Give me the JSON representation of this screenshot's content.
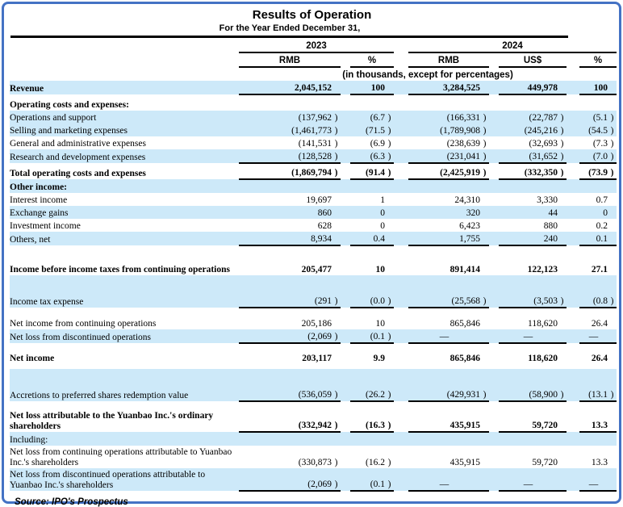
{
  "title": "Results of Operation",
  "subtitle": "For the Year Ended December 31,",
  "units_note": "(in thousands, except for percentages)",
  "col_groups": [
    {
      "label": "2023",
      "cols": [
        "RMB",
        "%"
      ]
    },
    {
      "label": "2024",
      "cols": [
        "RMB",
        "US$",
        "%"
      ]
    }
  ],
  "source": "Source: IPO's Prospectus",
  "colors": {
    "row_highlight": "#cde9f9",
    "frame_border": "#4472c4",
    "rule": "#000000"
  },
  "rows": [
    {
      "label": "Revenue",
      "bold": true,
      "blue": true,
      "ul": true,
      "values": [
        "2,045,152",
        "100",
        "3,284,525",
        "449,978",
        "100"
      ]
    },
    {
      "label": "Operating costs and expenses:",
      "bold": true,
      "h": 20,
      "values": null
    },
    {
      "label": "Operations and support",
      "indent": true,
      "blue": true,
      "values": [
        "(137,962 )",
        "(6.7 )",
        "(166,331 )",
        "(22,787 )",
        "(5.1 )"
      ]
    },
    {
      "label": "Selling and marketing expenses",
      "indent": true,
      "blue": true,
      "values": [
        "(1,461,773 )",
        "(71.5 )",
        "(1,789,908 )",
        "(245,216 )",
        "(54.5 )"
      ]
    },
    {
      "label": "General and administrative expenses",
      "indent": true,
      "values": [
        "(141,531 )",
        "(6.9 )",
        "(238,639 )",
        "(32,693 )",
        "(7.3 )"
      ]
    },
    {
      "label": "Research and development expenses",
      "indent": true,
      "blue": true,
      "ul": true,
      "values": [
        "(128,528 )",
        "(6.3 )",
        "(231,041 )",
        "(31,652 )",
        "(7.0 )"
      ]
    },
    {
      "label": "Total operating costs and expenses",
      "bold": true,
      "h": 20,
      "ul": true,
      "values": [
        "(1,869,794 )",
        "(91.4 )",
        "(2,425,919 )",
        "(332,350 )",
        "(73.9 )"
      ]
    },
    {
      "label": "Other income:",
      "bold": true,
      "blue": true,
      "h": 17,
      "values": null
    },
    {
      "label": "Interest income",
      "indent": true,
      "values": [
        "19,697",
        "1",
        "24,310",
        "3,330",
        "0.7"
      ]
    },
    {
      "label": "Exchange gains",
      "indent": true,
      "blue": true,
      "values": [
        "860",
        "0",
        "320",
        "44",
        "0"
      ]
    },
    {
      "label": "Investment income",
      "indent": true,
      "values": [
        "628",
        "0",
        "6,423",
        "880",
        "0.2"
      ]
    },
    {
      "label": "Others, net",
      "indent": true,
      "blue": true,
      "ul": true,
      "values": [
        "8,934",
        "0.4",
        "1,755",
        "240",
        "0.1"
      ]
    },
    {
      "gap": 6
    },
    {
      "label": "Income before income taxes from continuing operations",
      "bold": true,
      "h": 30,
      "top": true,
      "values": [
        "205,477",
        "10",
        "891,414",
        "122,123",
        "27.1"
      ]
    },
    {
      "label": "Income tax expense",
      "indent": true,
      "blue": true,
      "h": 40,
      "top": true,
      "ul": true,
      "values": [
        "(291 )",
        "(0.0 )",
        "(25,568 )",
        "(3,503 )",
        "(0.8 )"
      ]
    },
    {
      "gap": 8
    },
    {
      "label": "Net income from continuing operations",
      "indent": true,
      "h": 18,
      "values": [
        "205,186",
        "10",
        "865,846",
        "118,620",
        "26.4"
      ]
    },
    {
      "label": "Net loss from discontinued operations",
      "indent": true,
      "blue": true,
      "ul": true,
      "values": [
        "(2,069 )",
        "(0.1 )",
        "—",
        "—",
        "—"
      ]
    },
    {
      "label": "Net income",
      "bold": true,
      "h": 26,
      "top": true,
      "values": [
        "203,117",
        "9.9",
        "865,846",
        "118,620",
        "26.4"
      ]
    },
    {
      "gap": 6
    },
    {
      "label": "Accretions to preferred shares redemption value",
      "indent": true,
      "blue": true,
      "h": 40,
      "top": true,
      "ul": true,
      "values": [
        "(536,059 )",
        "(26.2 )",
        "(429,931 )",
        "(58,900 )",
        "(13.1 )"
      ]
    },
    {
      "label": "Net loss attributable to the Yuanbao Inc.'s ordinary shareholders",
      "bold": true,
      "h": 38,
      "top": true,
      "ul": true,
      "values": [
        "(332,942 )",
        "(16.3 )",
        "435,915",
        "59,720",
        "13.3"
      ]
    },
    {
      "label": "Including:",
      "blue": true,
      "values": null
    },
    {
      "label": "Net loss from continuing operations attributable to Yuanbao Inc.'s shareholders",
      "indent": true,
      "h": 28,
      "values": [
        "(330,873 )",
        "(16.2 )",
        "435,915",
        "59,720",
        "13.3"
      ]
    },
    {
      "label": "Net loss from discontinued operations attributable to Yuanbao Inc.'s shareholders",
      "indent": true,
      "blue": true,
      "h": 28,
      "ul": true,
      "values": [
        "(2,069 )",
        "(0.1 )",
        "—",
        "—",
        "—"
      ]
    }
  ]
}
